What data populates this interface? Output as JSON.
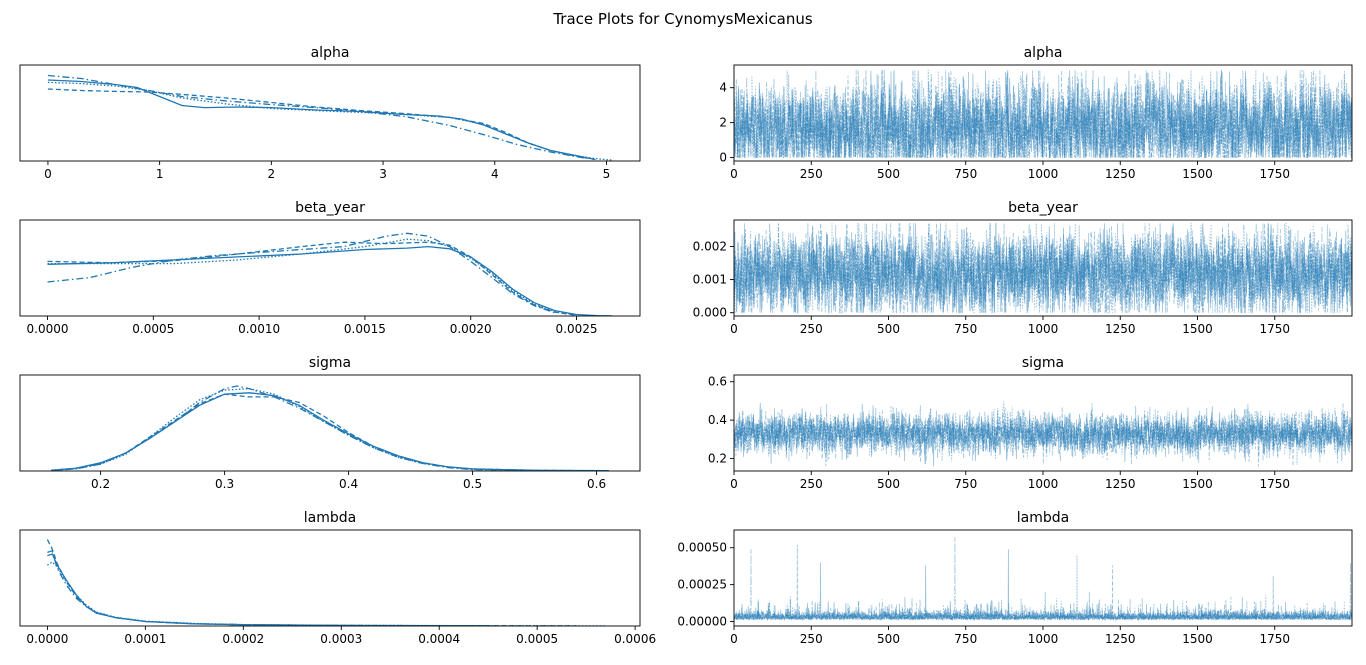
{
  "suptitle": "Trace Plots for CynomysMexicanus",
  "colors": {
    "line": "#1f77b4",
    "axis": "#000000"
  },
  "chart_data": [
    {
      "type": "line",
      "title": "alpha",
      "xlim": [
        -0.25,
        5.3
      ],
      "xticks": [
        0,
        1,
        2,
        3,
        4,
        5
      ],
      "xtick_labels": [
        "0",
        "1",
        "2",
        "3",
        "4",
        "5"
      ],
      "yticks": [],
      "ylim": [
        0,
        0.32
      ],
      "series": [
        {
          "linestyle": "solid",
          "x": [
            0,
            0.3,
            0.6,
            0.8,
            1.0,
            1.2,
            1.4,
            1.7,
            2.0,
            2.4,
            2.8,
            3.2,
            3.5,
            3.7,
            3.9,
            4.1,
            4.3,
            4.5,
            4.7,
            4.9
          ],
          "y": [
            0.27,
            0.265,
            0.255,
            0.245,
            0.215,
            0.185,
            0.178,
            0.18,
            0.178,
            0.17,
            0.165,
            0.155,
            0.15,
            0.14,
            0.12,
            0.09,
            0.06,
            0.035,
            0.02,
            0.005
          ]
        },
        {
          "linestyle": "dashed",
          "x": [
            0,
            0.3,
            0.6,
            0.9,
            1.2,
            1.6,
            2.0,
            2.4,
            2.8,
            3.2,
            3.6,
            3.9,
            4.1,
            4.3,
            4.5,
            4.7,
            4.9
          ],
          "y": [
            0.24,
            0.235,
            0.232,
            0.23,
            0.222,
            0.21,
            0.195,
            0.18,
            0.168,
            0.158,
            0.145,
            0.125,
            0.095,
            0.06,
            0.035,
            0.018,
            0.005
          ]
        },
        {
          "linestyle": "dotted",
          "x": [
            0,
            0.3,
            0.6,
            0.9,
            1.2,
            1.6,
            2.0,
            2.4,
            2.8,
            3.2,
            3.6,
            3.9,
            4.1,
            4.3,
            4.5,
            4.7,
            4.9,
            5.05
          ],
          "y": [
            0.262,
            0.258,
            0.25,
            0.235,
            0.21,
            0.19,
            0.175,
            0.168,
            0.162,
            0.155,
            0.145,
            0.122,
            0.09,
            0.06,
            0.035,
            0.02,
            0.008,
            0.003
          ]
        },
        {
          "linestyle": "dashdot",
          "x": [
            0,
            0.3,
            0.6,
            0.9,
            1.2,
            1.6,
            2.0,
            2.4,
            2.8,
            3.2,
            3.6,
            3.9,
            4.2,
            4.5,
            4.8
          ],
          "y": [
            0.285,
            0.275,
            0.255,
            0.235,
            0.215,
            0.2,
            0.188,
            0.178,
            0.165,
            0.148,
            0.118,
            0.088,
            0.055,
            0.03,
            0.01
          ]
        }
      ]
    },
    {
      "type": "line",
      "title": "alpha",
      "xlim": [
        0,
        2000
      ],
      "xticks": [
        0,
        250,
        500,
        750,
        1000,
        1250,
        1500,
        1750
      ],
      "xtick_labels": [
        "0",
        "250",
        "500",
        "750",
        "1000",
        "1250",
        "1500",
        "1750"
      ],
      "yticks": [
        0,
        2,
        4
      ],
      "ytick_labels": [
        "0",
        "2",
        "4"
      ],
      "ylim": [
        -0.2,
        5.3
      ],
      "trace": {
        "samples": 2000,
        "chains": 4,
        "center": 1.7,
        "spread": 1.3,
        "min": 0,
        "max": 5.0
      }
    },
    {
      "type": "line",
      "title": "beta_year",
      "xlim": [
        -0.00013,
        0.0028
      ],
      "xticks": [
        0,
        0.0005,
        0.001,
        0.0015,
        0.002,
        0.0025
      ],
      "xtick_labels": [
        "0.0000",
        "0.0005",
        "0.0010",
        "0.0015",
        "0.0020",
        "0.0025"
      ],
      "yticks": [],
      "ylim": [
        0,
        650
      ],
      "series": [
        {
          "linestyle": "solid",
          "x": [
            0,
            0.0003,
            0.0006,
            0.0009,
            0.0012,
            0.0015,
            0.0017,
            0.0018,
            0.0019,
            0.002,
            0.0021,
            0.0022,
            0.0023,
            0.0024,
            0.0025,
            0.0026,
            0.00267
          ],
          "y": [
            350,
            360,
            380,
            400,
            420,
            450,
            460,
            470,
            455,
            400,
            300,
            180,
            90,
            35,
            10,
            3,
            1
          ]
        },
        {
          "linestyle": "dashed",
          "x": [
            0,
            0.0003,
            0.0006,
            0.0009,
            0.0012,
            0.0014,
            0.0016,
            0.0018,
            0.0019,
            0.002,
            0.0021,
            0.0022,
            0.0023,
            0.0024,
            0.0025
          ],
          "y": [
            370,
            360,
            375,
            420,
            470,
            500,
            490,
            500,
            480,
            400,
            280,
            160,
            75,
            25,
            5
          ]
        },
        {
          "linestyle": "dotted",
          "x": [
            0,
            0.0003,
            0.0006,
            0.0009,
            0.0012,
            0.0015,
            0.0017,
            0.0018,
            0.0019,
            0.002,
            0.0021,
            0.0022,
            0.0023,
            0.0024,
            0.0025
          ],
          "y": [
            355,
            355,
            355,
            380,
            420,
            470,
            520,
            510,
            470,
            390,
            290,
            170,
            80,
            30,
            8
          ]
        },
        {
          "linestyle": "dashdot",
          "x": [
            0,
            0.0002,
            0.0004,
            0.0006,
            0.0008,
            0.001,
            0.0012,
            0.0014,
            0.0016,
            0.0017,
            0.0018,
            0.0019,
            0.002,
            0.0021,
            0.0022,
            0.0023,
            0.0024
          ],
          "y": [
            230,
            260,
            330,
            380,
            410,
            430,
            450,
            470,
            540,
            560,
            540,
            470,
            370,
            260,
            150,
            70,
            20
          ]
        }
      ]
    },
    {
      "type": "line",
      "title": "beta_year",
      "xlim": [
        0,
        2000
      ],
      "xticks": [
        0,
        250,
        500,
        750,
        1000,
        1250,
        1500,
        1750
      ],
      "xtick_labels": [
        "0",
        "250",
        "500",
        "750",
        "1000",
        "1250",
        "1500",
        "1750"
      ],
      "yticks": [
        0,
        0.001,
        0.002
      ],
      "ytick_labels": [
        "0.000",
        "0.001",
        "0.002"
      ],
      "ylim": [
        -0.0001,
        0.0028
      ],
      "trace": {
        "samples": 2000,
        "chains": 4,
        "center": 0.0012,
        "spread": 0.0006,
        "min": 0,
        "max": 0.0027
      }
    },
    {
      "type": "line",
      "title": "sigma",
      "xlim": [
        0.135,
        0.635
      ],
      "xticks": [
        0.2,
        0.3,
        0.4,
        0.5,
        0.6
      ],
      "xtick_labels": [
        "0.2",
        "0.3",
        "0.4",
        "0.5",
        "0.6"
      ],
      "yticks": [],
      "ylim": [
        0,
        7.0
      ],
      "series": [
        {
          "linestyle": "solid",
          "x": [
            0.16,
            0.18,
            0.2,
            0.22,
            0.24,
            0.26,
            0.28,
            0.3,
            0.32,
            0.34,
            0.36,
            0.38,
            0.4,
            0.42,
            0.44,
            0.46,
            0.48,
            0.5,
            0.55,
            0.61
          ],
          "y": [
            0.05,
            0.2,
            0.6,
            1.3,
            2.4,
            3.6,
            4.8,
            5.6,
            5.7,
            5.5,
            4.8,
            3.7,
            2.7,
            1.8,
            1.1,
            0.6,
            0.3,
            0.15,
            0.05,
            0.02
          ]
        },
        {
          "linestyle": "dashed",
          "x": [
            0.16,
            0.18,
            0.2,
            0.22,
            0.24,
            0.26,
            0.28,
            0.3,
            0.32,
            0.34,
            0.36,
            0.38,
            0.4,
            0.42,
            0.44,
            0.46,
            0.48,
            0.5,
            0.55,
            0.59
          ],
          "y": [
            0.05,
            0.2,
            0.55,
            1.3,
            2.5,
            3.7,
            4.9,
            5.6,
            5.4,
            5.4,
            5.0,
            4.0,
            2.8,
            1.8,
            1.1,
            0.6,
            0.3,
            0.15,
            0.05,
            0.02
          ]
        },
        {
          "linestyle": "dotted",
          "x": [
            0.16,
            0.18,
            0.2,
            0.22,
            0.24,
            0.26,
            0.28,
            0.3,
            0.32,
            0.34,
            0.36,
            0.38,
            0.4,
            0.42,
            0.44,
            0.46,
            0.48,
            0.5,
            0.55
          ],
          "y": [
            0.05,
            0.15,
            0.5,
            1.2,
            2.5,
            3.9,
            5.2,
            5.9,
            6.0,
            5.6,
            4.7,
            3.6,
            2.6,
            1.7,
            1.0,
            0.55,
            0.3,
            0.12,
            0.04
          ]
        },
        {
          "linestyle": "dashdot",
          "x": [
            0.16,
            0.18,
            0.2,
            0.22,
            0.24,
            0.26,
            0.28,
            0.3,
            0.31,
            0.32,
            0.34,
            0.36,
            0.38,
            0.4,
            0.42,
            0.44,
            0.46,
            0.48,
            0.5,
            0.55
          ],
          "y": [
            0.04,
            0.15,
            0.5,
            1.3,
            2.4,
            3.6,
            5.0,
            6.0,
            6.2,
            6.0,
            5.4,
            4.6,
            3.6,
            2.6,
            1.7,
            1.0,
            0.55,
            0.25,
            0.1,
            0.03
          ]
        }
      ]
    },
    {
      "type": "line",
      "title": "sigma",
      "xlim": [
        0,
        2000
      ],
      "xticks": [
        0,
        250,
        500,
        750,
        1000,
        1250,
        1500,
        1750
      ],
      "xtick_labels": [
        "0",
        "250",
        "500",
        "750",
        "1000",
        "1250",
        "1500",
        "1750"
      ],
      "yticks": [
        0.2,
        0.4,
        0.6
      ],
      "ytick_labels": [
        "0.2",
        "0.4",
        "0.6"
      ],
      "ylim": [
        0.135,
        0.635
      ],
      "trace": {
        "samples": 2000,
        "chains": 4,
        "center": 0.33,
        "spread": 0.05,
        "min": 0.16,
        "max": 0.61
      }
    },
    {
      "type": "line",
      "title": "lambda",
      "xlim": [
        -2.8e-05,
        0.000605
      ],
      "xticks": [
        0,
        0.0001,
        0.0002,
        0.0003,
        0.0004,
        0.0005,
        0.0006
      ],
      "xtick_labels": [
        "0.0000",
        "0.0001",
        "0.0002",
        "0.0003",
        "0.0004",
        "0.0005",
        "0.0006"
      ],
      "yticks": [],
      "ylim": [
        0,
        30000
      ],
      "series": [
        {
          "linestyle": "solid",
          "x": [
            0,
            5e-06,
            1e-05,
            2e-05,
            3e-05,
            4e-05,
            5e-05,
            7e-05,
            0.0001,
            0.00015,
            0.0002,
            0.0003,
            0.00045
          ],
          "y": [
            22000,
            22500,
            19000,
            14000,
            9500,
            6000,
            4000,
            2600,
            1400,
            700,
            400,
            200,
            50
          ]
        },
        {
          "linestyle": "dashed",
          "x": [
            0,
            5e-06,
            1e-05,
            2e-05,
            3e-05,
            4e-05,
            5e-05,
            7e-05,
            0.0001,
            0.00015,
            0.0002,
            0.0003,
            0.00045,
            0.00054
          ],
          "y": [
            27000,
            24000,
            19500,
            13500,
            9000,
            6200,
            4200,
            2600,
            1400,
            700,
            400,
            200,
            60,
            20
          ]
        },
        {
          "linestyle": "dotted",
          "x": [
            0,
            5e-06,
            1e-05,
            2e-05,
            3e-05,
            4e-05,
            5e-05,
            7e-05,
            0.0001,
            0.00015,
            0.0002,
            0.0003,
            0.00045,
            0.00057
          ],
          "y": [
            19000,
            20000,
            18500,
            13500,
            9500,
            6500,
            4300,
            2700,
            1500,
            800,
            450,
            220,
            80,
            20
          ]
        },
        {
          "linestyle": "dashdot",
          "x": [
            0,
            5e-06,
            1e-05,
            2e-05,
            3e-05,
            4e-05,
            5e-05,
            7e-05,
            0.0001,
            0.00015,
            0.0002,
            0.0003
          ],
          "y": [
            23000,
            23500,
            18000,
            12500,
            8500,
            6000,
            4200,
            2600,
            1400,
            700,
            400,
            150
          ]
        }
      ]
    },
    {
      "type": "line",
      "title": "lambda",
      "xlim": [
        0,
        2000
      ],
      "xticks": [
        0,
        250,
        500,
        750,
        1000,
        1250,
        1500,
        1750
      ],
      "xtick_labels": [
        "0",
        "250",
        "500",
        "750",
        "1000",
        "1250",
        "1500",
        "1750"
      ],
      "yticks": [
        0,
        0.00025,
        0.0005
      ],
      "ytick_labels": [
        "0.00000",
        "0.00025",
        "0.00050"
      ],
      "ylim": [
        -3e-05,
        0.00062
      ],
      "trace": {
        "samples": 2000,
        "chains": 4,
        "center": 3e-05,
        "spread": 3e-05,
        "min": 0,
        "max": 0.00057,
        "spikes": [
          [
            55,
            0.00049
          ],
          [
            205,
            0.00052
          ],
          [
            715,
            0.00057
          ],
          [
            888,
            0.00049
          ],
          [
            1110,
            0.00045
          ],
          [
            1225,
            0.00038
          ],
          [
            1745,
            0.00031
          ],
          [
            1995,
            0.0004
          ],
          [
            620,
            0.00038
          ],
          [
            280,
            0.0004
          ]
        ]
      }
    }
  ]
}
